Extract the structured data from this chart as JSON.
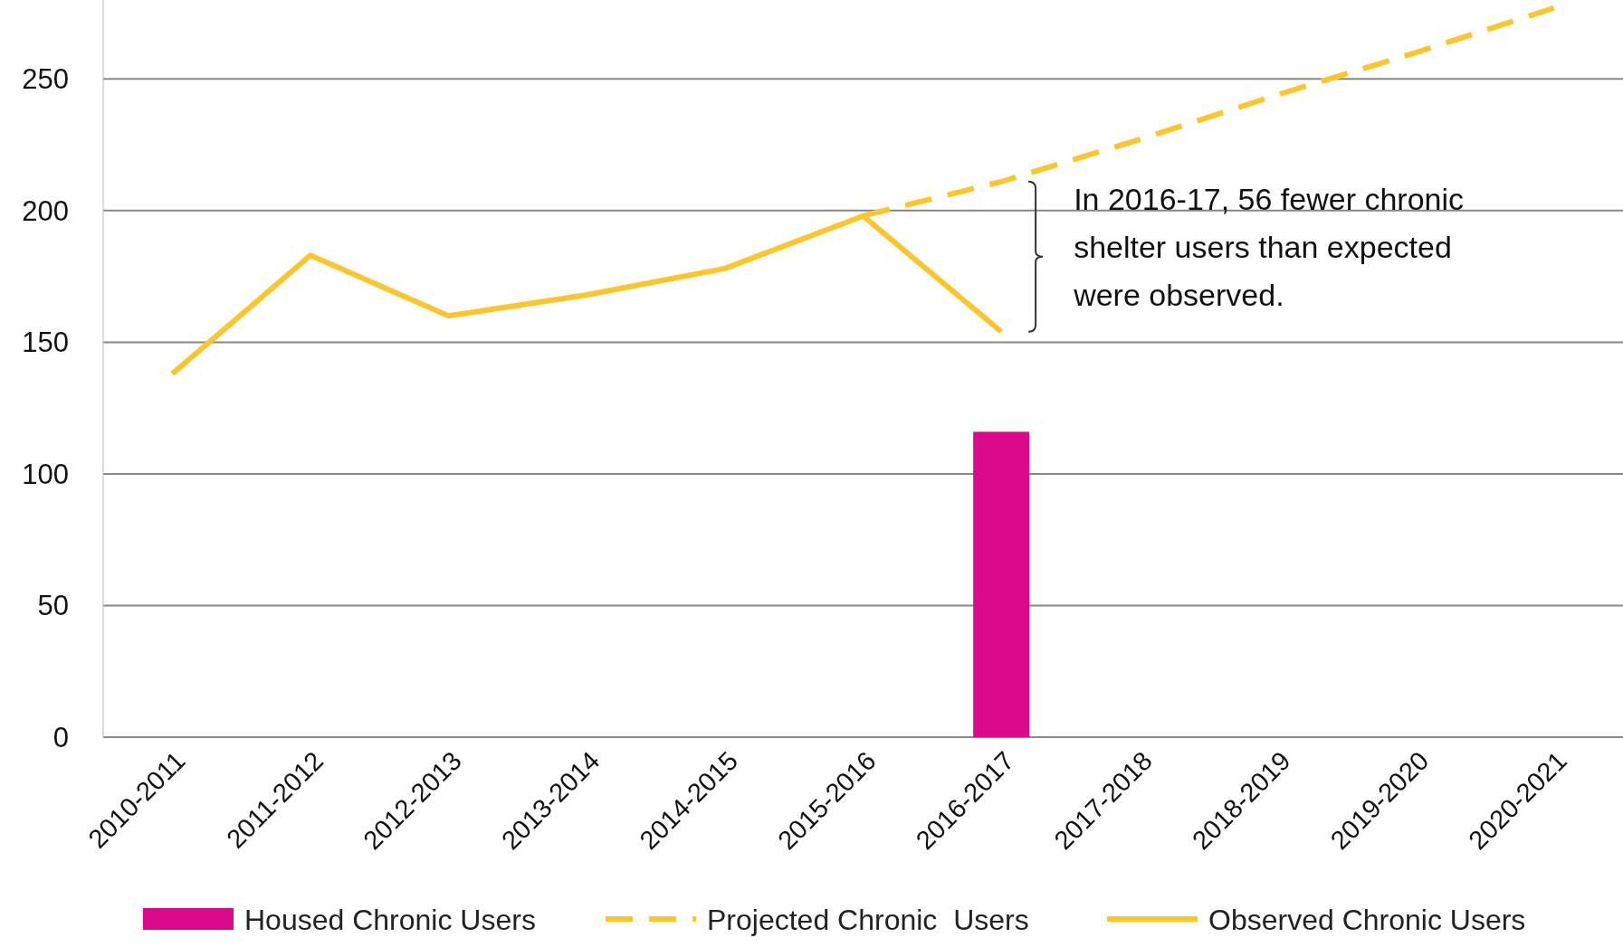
{
  "chart_data": {
    "type": "bar",
    "categories": [
      "2010-2011",
      "2011-2012",
      "2012-2013",
      "2013-2014",
      "2014-2015",
      "2015-2016",
      "2016-2017",
      "2017-2018",
      "2018-2019",
      "2019-2020",
      "2020-2021"
    ],
    "series": [
      {
        "name": "Housed Chronic Users",
        "color": "#d90b8c",
        "values": [
          null,
          null,
          null,
          null,
          null,
          null,
          116,
          null,
          null,
          null,
          null
        ]
      },
      {
        "name": "Projected Chronic  Users",
        "type": "line",
        "line_style": "dashed",
        "color": "#fdc52c",
        "values": [
          null,
          null,
          null,
          null,
          null,
          198,
          211,
          227,
          244,
          260,
          277
        ]
      },
      {
        "name": "Observed Chronic Users",
        "type": "line",
        "line_style": "solid",
        "color": "#fdc52c",
        "values": [
          138,
          183,
          160,
          168,
          178,
          198,
          154,
          null,
          null,
          null,
          null
        ]
      }
    ],
    "ylim": [
      0,
      280
    ],
    "yticks": [
      0,
      50,
      100,
      150,
      200,
      250
    ],
    "grid": "y",
    "legend": "bottom",
    "annotations": [
      "In 2016-17, 56 fewer chronic shelter users than expected were observed."
    ]
  }
}
